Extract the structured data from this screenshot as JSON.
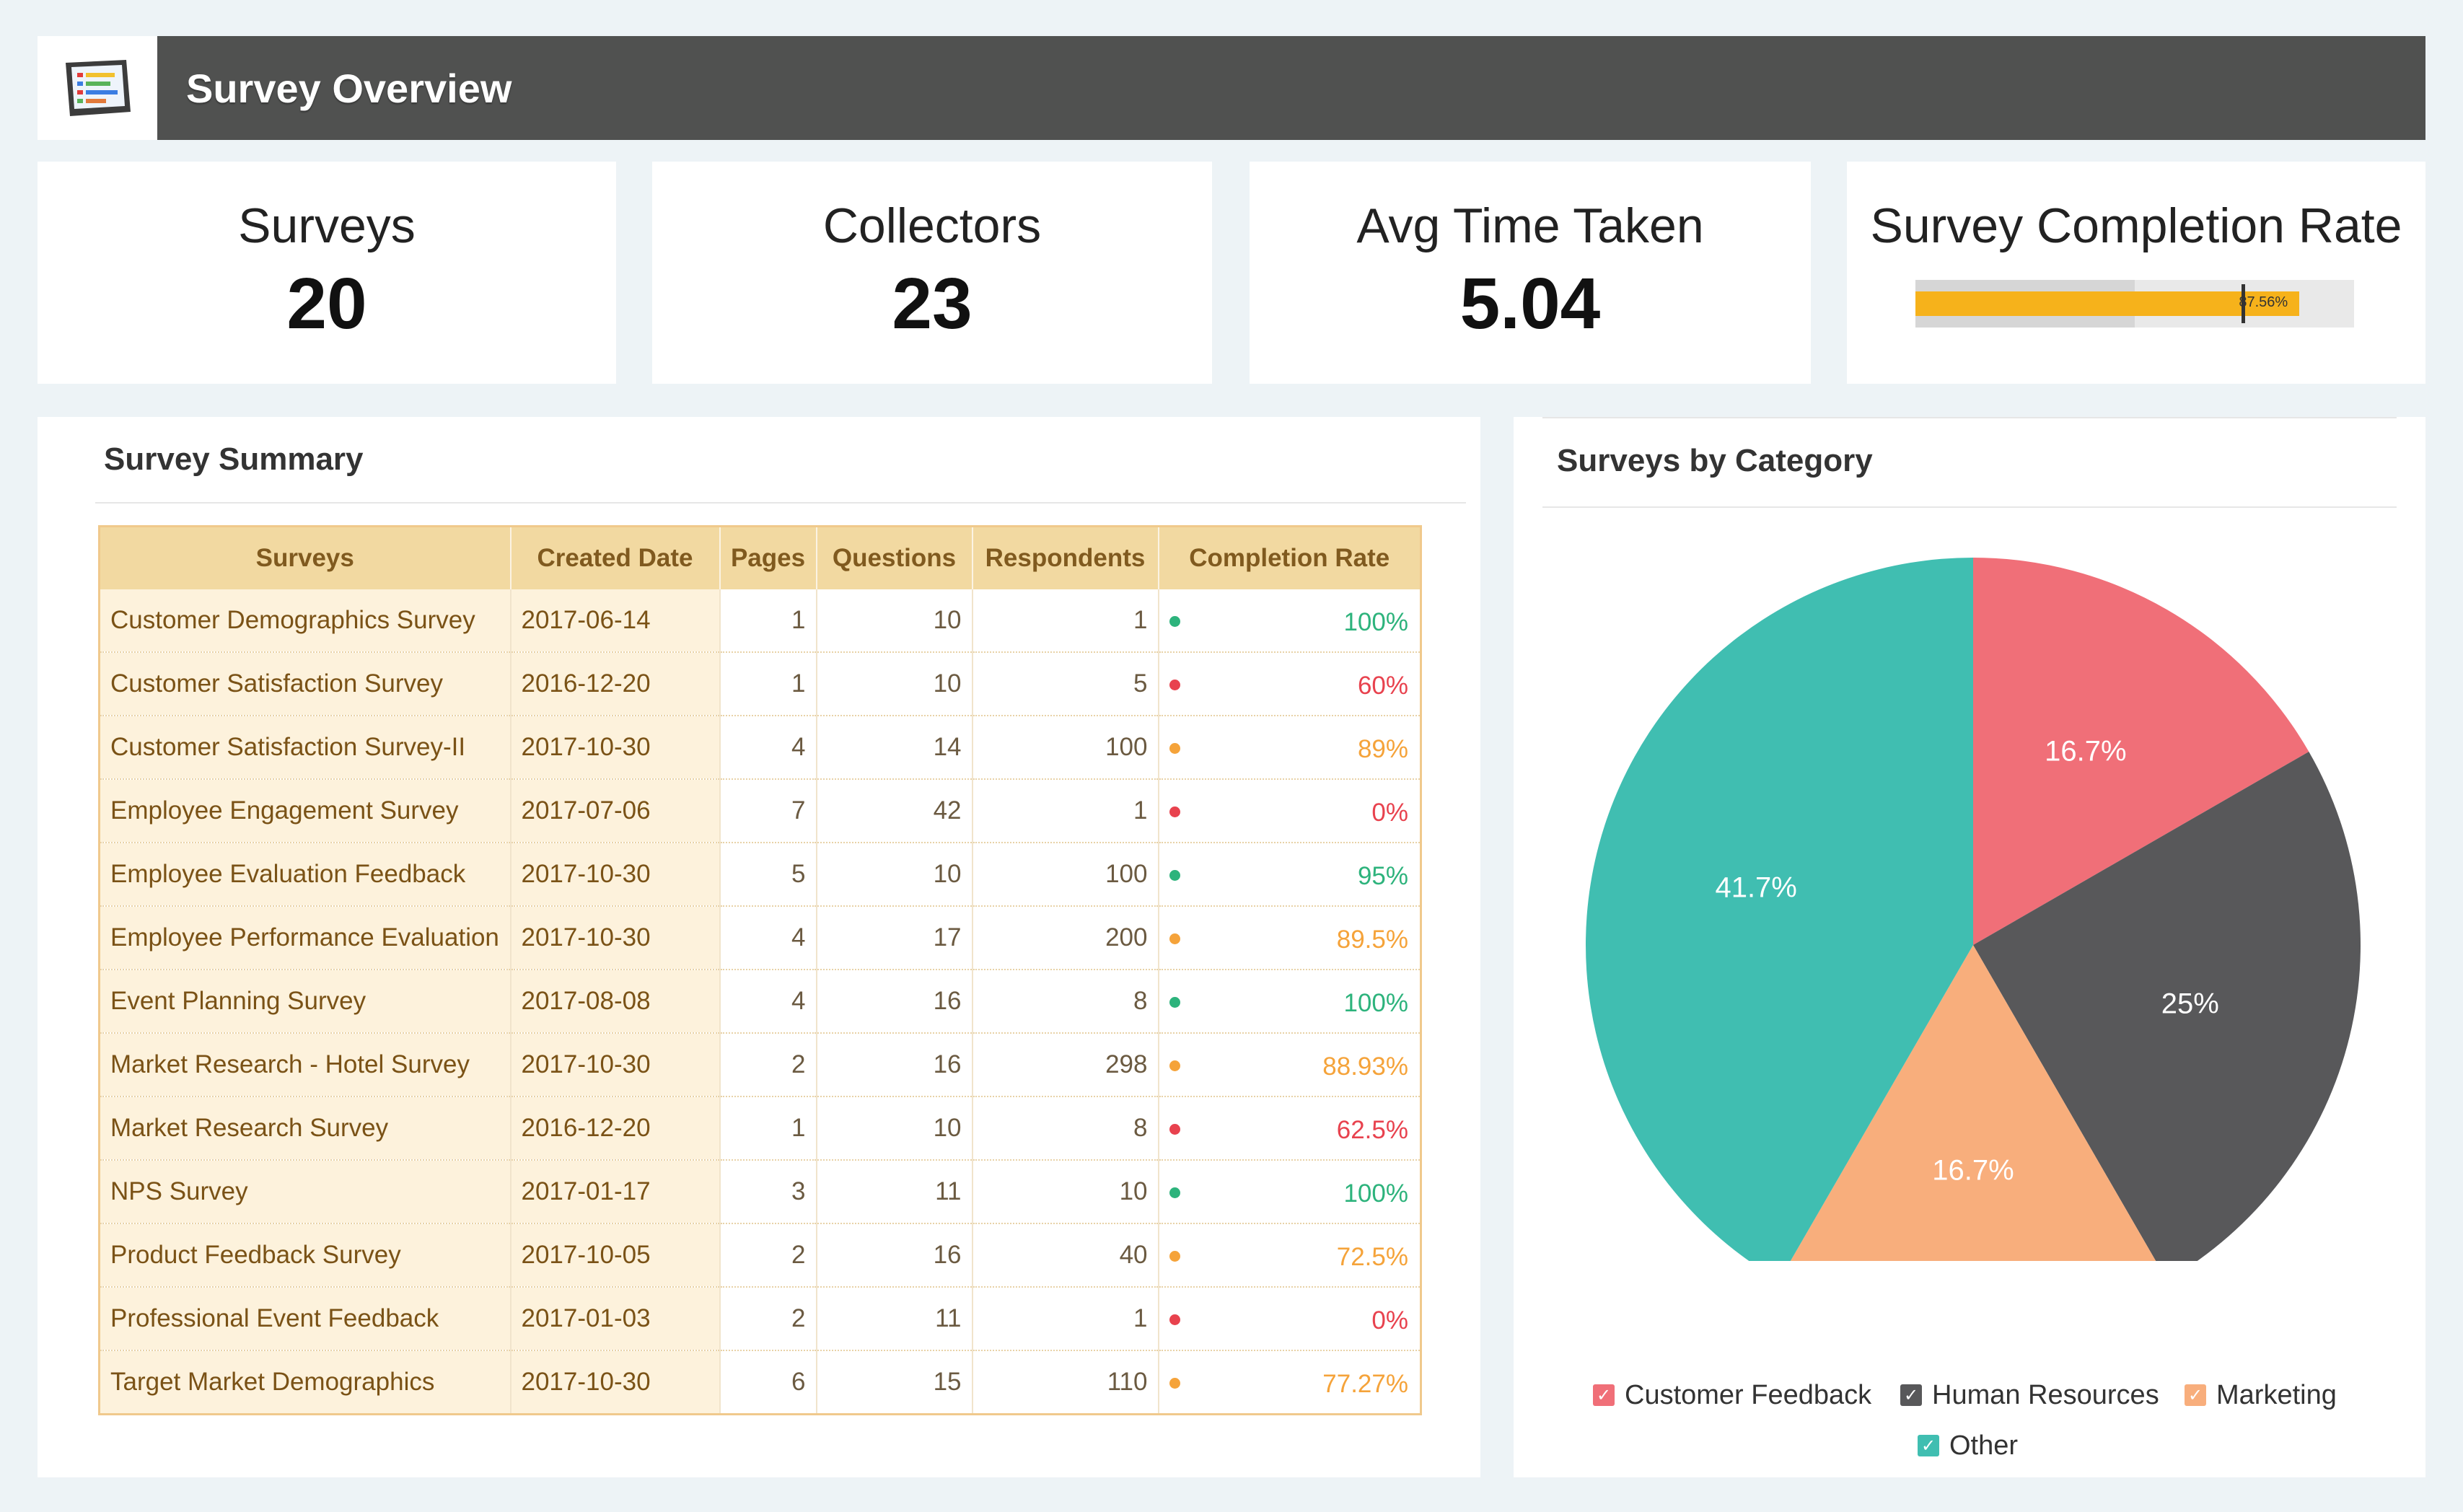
{
  "header": {
    "title": "Survey Overview",
    "logo_icon": "survey-dashboard-icon"
  },
  "kpis": {
    "surveys": {
      "label": "Surveys",
      "value": "20"
    },
    "collectors": {
      "label": "Collectors",
      "value": "23"
    },
    "avg_time": {
      "label": "Avg Time Taken",
      "value": "5.04"
    },
    "completion": {
      "label": "Survey Completion Rate",
      "value_label": "87.56%",
      "value": 87.56,
      "fill_fraction": 0.8756
    }
  },
  "summary": {
    "title": "Survey Summary",
    "columns": [
      "Surveys",
      "Created Date",
      "Pages",
      "Questions",
      "Respondents",
      "Completion Rate"
    ],
    "rows": [
      {
        "name": "Customer Demographics Survey",
        "date": "2017-06-14",
        "pages": "1",
        "questions": "10",
        "respondents": "1",
        "status": "green",
        "rate": "100%"
      },
      {
        "name": "Customer Satisfaction Survey",
        "date": "2016-12-20",
        "pages": "1",
        "questions": "10",
        "respondents": "5",
        "status": "red",
        "rate": "60%"
      },
      {
        "name": "Customer Satisfaction Survey-II",
        "date": "2017-10-30",
        "pages": "4",
        "questions": "14",
        "respondents": "100",
        "status": "orange",
        "rate": "89%"
      },
      {
        "name": "Employee Engagement Survey",
        "date": "2017-07-06",
        "pages": "7",
        "questions": "42",
        "respondents": "1",
        "status": "red",
        "rate": "0%"
      },
      {
        "name": "Employee Evaluation Feedback",
        "date": "2017-10-30",
        "pages": "5",
        "questions": "10",
        "respondents": "100",
        "status": "green",
        "rate": "95%"
      },
      {
        "name": "Employee Performance Evaluation",
        "date": "2017-10-30",
        "pages": "4",
        "questions": "17",
        "respondents": "200",
        "status": "orange",
        "rate": "89.5%"
      },
      {
        "name": "Event Planning Survey",
        "date": "2017-08-08",
        "pages": "4",
        "questions": "16",
        "respondents": "8",
        "status": "green",
        "rate": "100%"
      },
      {
        "name": "Market Research - Hotel Survey",
        "date": "2017-10-30",
        "pages": "2",
        "questions": "16",
        "respondents": "298",
        "status": "orange",
        "rate": "88.93%"
      },
      {
        "name": "Market Research Survey",
        "date": "2016-12-20",
        "pages": "1",
        "questions": "10",
        "respondents": "8",
        "status": "red",
        "rate": "62.5%"
      },
      {
        "name": "NPS Survey",
        "date": "2017-01-17",
        "pages": "3",
        "questions": "11",
        "respondents": "10",
        "status": "green",
        "rate": "100%"
      },
      {
        "name": "Product Feedback Survey",
        "date": "2017-10-05",
        "pages": "2",
        "questions": "16",
        "respondents": "40",
        "status": "orange",
        "rate": "72.5%"
      },
      {
        "name": "Professional Event Feedback",
        "date": "2017-01-03",
        "pages": "2",
        "questions": "11",
        "respondents": "1",
        "status": "red",
        "rate": "0%"
      },
      {
        "name": "Target Market Demographics",
        "date": "2017-10-30",
        "pages": "6",
        "questions": "15",
        "respondents": "110",
        "status": "orange",
        "rate": "77.27%"
      }
    ]
  },
  "status_colors": {
    "green": "#2db37c",
    "red": "#e8424e",
    "orange": "#f5a33a"
  },
  "category_panel": {
    "title": "Surveys by Category"
  },
  "chart_data": {
    "type": "pie",
    "title": "Surveys by Category",
    "categories": [
      "Customer Feedback",
      "Human Resources",
      "Marketing",
      "Other"
    ],
    "values": [
      16.7,
      25,
      16.7,
      41.7
    ],
    "labels": [
      "16.7%",
      "25%",
      "16.7%",
      "41.7%"
    ],
    "colors": [
      "#f06f78",
      "#58585a",
      "#f8ae7c",
      "#40beb1"
    ],
    "legend": "bottom"
  }
}
